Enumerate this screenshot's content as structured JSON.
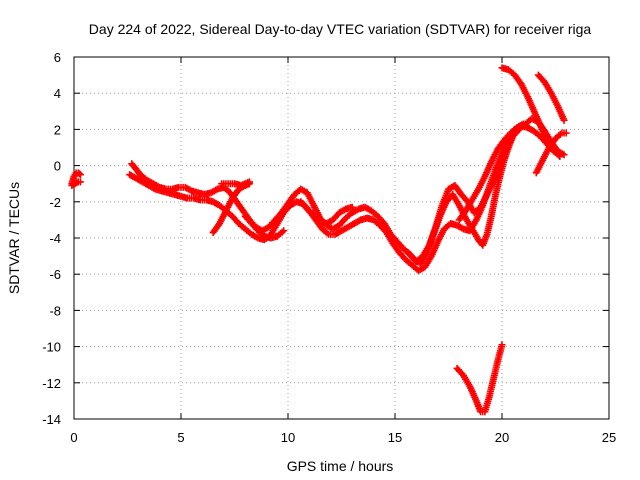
{
  "chart_data": {
    "type": "scatter",
    "title": "Day 224 of 2022, Sidereal Day-to-day VTEC variation (SDTVAR) for receiver riga",
    "xlabel": "GPS time / hours",
    "ylabel": "SDTVAR / TECUs",
    "xlim": [
      0,
      25
    ],
    "ylim": [
      -14,
      6
    ],
    "xticks": [
      "0",
      "5",
      "10",
      "15",
      "20",
      "25"
    ],
    "yticks": [
      "-14",
      "-12",
      "-10",
      "-8",
      "-6",
      "-4",
      "-2",
      "0",
      "2",
      "4",
      "6"
    ],
    "grid": true,
    "legend": "none",
    "marker": "plus",
    "color": "#ff0000",
    "series": [
      {
        "points": [
          [
            -0.1,
            -1.0
          ],
          [
            0.0,
            -0.6
          ],
          [
            0.1,
            -0.4
          ],
          [
            0.2,
            -0.4
          ],
          [
            0.3,
            -0.5
          ]
        ]
      },
      {
        "points": [
          [
            -0.1,
            -1.1
          ],
          [
            0.05,
            -1.0
          ],
          [
            0.2,
            -0.9
          ],
          [
            0.3,
            -0.9
          ]
        ]
      },
      {
        "points": [
          [
            2.7,
            0.1
          ],
          [
            2.9,
            -0.2
          ],
          [
            3.1,
            -0.5
          ],
          [
            3.4,
            -0.8
          ],
          [
            3.7,
            -1.0
          ],
          [
            4.0,
            -1.2
          ],
          [
            4.3,
            -1.3
          ],
          [
            4.6,
            -1.3
          ],
          [
            4.9,
            -1.2
          ],
          [
            5.2,
            -1.2
          ],
          [
            5.5,
            -1.4
          ],
          [
            5.8,
            -1.5
          ],
          [
            6.1,
            -1.6
          ],
          [
            6.4,
            -1.5
          ],
          [
            6.7,
            -1.3
          ],
          [
            7.0,
            -1.2
          ],
          [
            7.3,
            -1.5
          ],
          [
            7.6,
            -2.0
          ],
          [
            7.9,
            -2.5
          ],
          [
            8.2,
            -3.0
          ],
          [
            8.5,
            -3.4
          ],
          [
            8.8,
            -3.6
          ],
          [
            9.1,
            -3.4
          ],
          [
            9.4,
            -3.0
          ],
          [
            9.7,
            -2.6
          ],
          [
            10.0,
            -2.1
          ],
          [
            10.3,
            -1.6
          ],
          [
            10.6,
            -1.3
          ],
          [
            10.9,
            -1.5
          ],
          [
            11.2,
            -2.2
          ],
          [
            11.5,
            -2.9
          ],
          [
            11.8,
            -3.3
          ],
          [
            12.1,
            -3.5
          ],
          [
            12.4,
            -3.3
          ],
          [
            12.7,
            -2.9
          ],
          [
            13.0,
            -2.6
          ],
          [
            13.3,
            -2.4
          ],
          [
            13.6,
            -2.3
          ],
          [
            13.9,
            -2.5
          ],
          [
            14.2,
            -2.8
          ],
          [
            14.5,
            -3.2
          ],
          [
            14.8,
            -3.8
          ],
          [
            15.1,
            -4.2
          ],
          [
            15.4,
            -4.6
          ],
          [
            15.7,
            -4.9
          ],
          [
            16.0,
            -5.3
          ],
          [
            16.3,
            -5.0
          ],
          [
            16.6,
            -4.4
          ],
          [
            16.9,
            -3.4
          ],
          [
            17.2,
            -2.2
          ],
          [
            17.5,
            -1.3
          ],
          [
            17.8,
            -1.1
          ],
          [
            18.1,
            -1.6
          ],
          [
            18.4,
            -2.0
          ],
          [
            18.7,
            -2.6
          ],
          [
            19.0,
            -2.3
          ],
          [
            19.3,
            -1.6
          ],
          [
            19.6,
            -0.9
          ],
          [
            19.9,
            0.0
          ],
          [
            20.2,
            0.9
          ],
          [
            20.5,
            1.6
          ],
          [
            20.8,
            2.0
          ],
          [
            21.1,
            2.3
          ],
          [
            21.4,
            2.6
          ],
          [
            21.7,
            2.4
          ],
          [
            22.0,
            1.9
          ],
          [
            22.3,
            1.3
          ],
          [
            22.6,
            0.8
          ],
          [
            22.9,
            0.6
          ]
        ]
      },
      {
        "points": [
          [
            2.6,
            -0.5
          ],
          [
            2.9,
            -0.7
          ],
          [
            3.2,
            -0.9
          ],
          [
            3.5,
            -1.1
          ],
          [
            3.8,
            -1.3
          ],
          [
            4.1,
            -1.4
          ],
          [
            4.4,
            -1.5
          ],
          [
            4.7,
            -1.6
          ],
          [
            5.0,
            -1.7
          ],
          [
            5.3,
            -1.8
          ],
          [
            5.6,
            -1.8
          ],
          [
            5.9,
            -1.9
          ],
          [
            6.2,
            -1.9
          ],
          [
            6.5,
            -2.0
          ],
          [
            6.8,
            -2.2
          ],
          [
            7.1,
            -2.5
          ],
          [
            7.4,
            -2.8
          ],
          [
            7.7,
            -3.2
          ],
          [
            8.0,
            -3.5
          ],
          [
            8.3,
            -3.8
          ],
          [
            8.6,
            -4.0
          ],
          [
            8.9,
            -4.1
          ],
          [
            9.2,
            -3.8
          ],
          [
            9.5,
            -3.2
          ],
          [
            9.8,
            -2.6
          ],
          [
            10.1,
            -2.2
          ],
          [
            10.4,
            -2.0
          ],
          [
            10.7,
            -2.1
          ],
          [
            11.0,
            -2.5
          ],
          [
            11.3,
            -3.0
          ],
          [
            11.6,
            -3.5
          ],
          [
            11.9,
            -3.8
          ],
          [
            12.2,
            -3.8
          ],
          [
            12.5,
            -3.6
          ],
          [
            12.8,
            -3.4
          ],
          [
            13.1,
            -3.2
          ],
          [
            13.4,
            -3.0
          ],
          [
            13.7,
            -2.9
          ],
          [
            14.0,
            -3.0
          ],
          [
            14.3,
            -3.3
          ],
          [
            14.6,
            -3.7
          ],
          [
            14.9,
            -4.3
          ],
          [
            15.2,
            -4.8
          ],
          [
            15.5,
            -5.2
          ],
          [
            15.8,
            -5.5
          ],
          [
            16.1,
            -5.8
          ],
          [
            16.4,
            -5.6
          ],
          [
            16.7,
            -5.0
          ],
          [
            17.0,
            -4.2
          ],
          [
            17.3,
            -3.5
          ],
          [
            17.6,
            -3.2
          ],
          [
            17.9,
            -3.3
          ],
          [
            18.2,
            -3.5
          ],
          [
            18.5,
            -3.6
          ],
          [
            18.8,
            -3.0
          ],
          [
            19.1,
            -2.2
          ],
          [
            19.4,
            -1.2
          ],
          [
            19.7,
            -0.2
          ],
          [
            20.0,
            0.7
          ],
          [
            20.3,
            1.5
          ],
          [
            20.6,
            2.0
          ],
          [
            20.9,
            2.2
          ],
          [
            21.2,
            2.1
          ],
          [
            21.5,
            1.9
          ],
          [
            21.8,
            1.6
          ],
          [
            22.1,
            1.2
          ],
          [
            22.4,
            0.8
          ],
          [
            22.7,
            0.6
          ]
        ]
      },
      {
        "points": [
          [
            6.5,
            -3.7
          ],
          [
            6.8,
            -3.2
          ],
          [
            7.1,
            -2.5
          ],
          [
            7.4,
            -1.8
          ],
          [
            7.7,
            -1.3
          ],
          [
            8.0,
            -1.1
          ],
          [
            8.2,
            -1.0
          ]
        ]
      },
      {
        "points": [
          [
            6.9,
            -1.0
          ],
          [
            7.2,
            -1.0
          ],
          [
            7.5,
            -1.0
          ],
          [
            7.8,
            -1.1
          ],
          [
            8.2,
            -0.9
          ]
        ]
      },
      {
        "points": [
          [
            8.0,
            -2.8
          ],
          [
            8.3,
            -3.2
          ],
          [
            8.6,
            -3.6
          ],
          [
            8.9,
            -3.9
          ],
          [
            9.2,
            -4.0
          ],
          [
            9.5,
            -3.9
          ],
          [
            9.8,
            -3.6
          ]
        ]
      },
      {
        "points": [
          [
            10.6,
            -2.0
          ],
          [
            10.9,
            -2.4
          ],
          [
            11.2,
            -2.8
          ],
          [
            11.5,
            -3.1
          ],
          [
            11.8,
            -3.2
          ],
          [
            12.1,
            -3.0
          ],
          [
            12.4,
            -2.6
          ],
          [
            12.7,
            -2.4
          ],
          [
            13.0,
            -2.3
          ]
        ]
      },
      {
        "points": [
          [
            15.6,
            -4.8
          ],
          [
            15.9,
            -5.2
          ],
          [
            16.2,
            -5.4
          ],
          [
            16.5,
            -4.8
          ],
          [
            16.8,
            -3.8
          ],
          [
            17.1,
            -2.8
          ],
          [
            17.4,
            -2.0
          ],
          [
            17.7,
            -1.6
          ],
          [
            18.0,
            -2.2
          ],
          [
            18.3,
            -2.9
          ],
          [
            18.6,
            -3.5
          ],
          [
            18.9,
            -4.1
          ],
          [
            19.1,
            -4.4
          ],
          [
            19.3,
            -3.8
          ],
          [
            19.5,
            -2.8
          ],
          [
            19.7,
            -1.6
          ],
          [
            19.9,
            -0.6
          ],
          [
            20.1,
            0.3
          ],
          [
            20.3,
            1.0
          ],
          [
            20.5,
            1.6
          ],
          [
            20.7,
            2.0
          ]
        ]
      },
      {
        "points": [
          [
            18.0,
            -3.0
          ],
          [
            18.3,
            -2.5
          ],
          [
            18.6,
            -1.9
          ],
          [
            18.9,
            -1.3
          ],
          [
            19.2,
            -0.6
          ],
          [
            19.5,
            0.2
          ],
          [
            19.8,
            0.9
          ],
          [
            20.1,
            1.4
          ],
          [
            20.4,
            1.8
          ],
          [
            20.7,
            2.1
          ],
          [
            21.0,
            2.3
          ]
        ]
      },
      {
        "points": [
          [
            20.0,
            5.4
          ],
          [
            20.3,
            5.3
          ],
          [
            20.6,
            5.0
          ],
          [
            20.9,
            4.5
          ],
          [
            21.2,
            3.8
          ],
          [
            21.5,
            3.0
          ],
          [
            21.8,
            2.2
          ],
          [
            22.1,
            1.4
          ],
          [
            22.4,
            0.9
          ],
          [
            22.7,
            0.5
          ]
        ]
      },
      {
        "points": [
          [
            21.7,
            5.0
          ],
          [
            22.0,
            4.6
          ],
          [
            22.3,
            4.0
          ],
          [
            22.6,
            3.3
          ],
          [
            22.9,
            2.5
          ]
        ]
      },
      {
        "points": [
          [
            21.6,
            -0.4
          ],
          [
            21.9,
            0.3
          ],
          [
            22.2,
            1.0
          ],
          [
            22.5,
            1.5
          ],
          [
            22.8,
            1.8
          ],
          [
            23.0,
            1.8
          ]
        ]
      },
      {
        "points": [
          [
            17.9,
            -11.2
          ],
          [
            18.2,
            -11.6
          ],
          [
            18.5,
            -12.2
          ],
          [
            18.8,
            -13.0
          ],
          [
            19.0,
            -13.6
          ],
          [
            19.2,
            -13.6
          ],
          [
            19.4,
            -12.8
          ],
          [
            19.6,
            -11.8
          ],
          [
            19.8,
            -10.8
          ],
          [
            20.0,
            -9.9
          ]
        ]
      }
    ]
  }
}
